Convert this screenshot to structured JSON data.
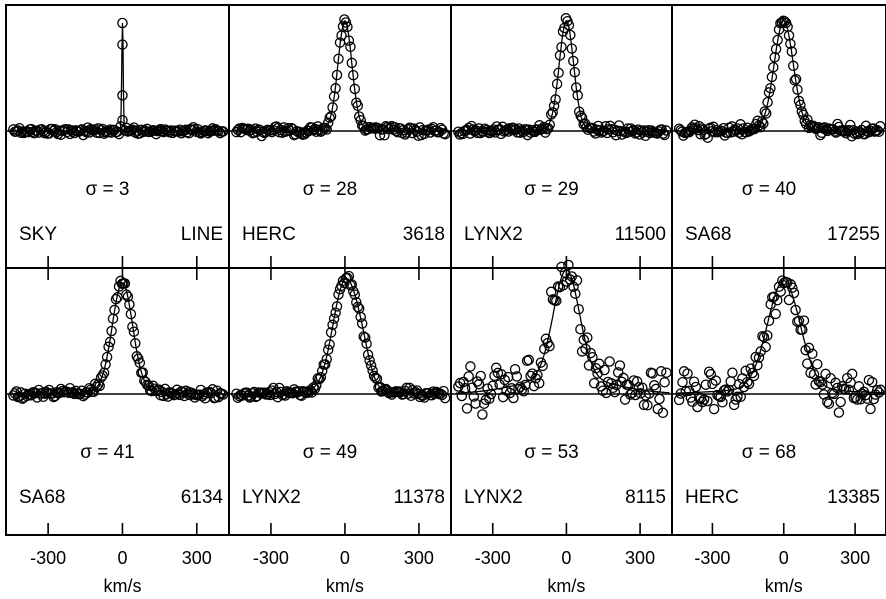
{
  "chart_data": {
    "type": "scatter",
    "layout": "grid of 8 panels (2 rows x 4 columns), shared x-axis per column",
    "grid": false,
    "xlabel": "km/s",
    "xticks": [
      -300,
      0,
      300
    ],
    "xlim": [
      -470,
      430
    ],
    "panels": [
      {
        "id": "sky-line",
        "sigma_label": "σ = 3",
        "field": "SKY",
        "number": "LINE",
        "width_kms": 3,
        "noise": 0.015,
        "wing": 0,
        "asym": 0
      },
      {
        "id": "herc-3618",
        "sigma_label": "σ = 28",
        "field": "HERC",
        "number": "3618",
        "width_kms": 28,
        "noise": 0.02,
        "wing": 0.02,
        "asym": 0
      },
      {
        "id": "lynx2-11500",
        "sigma_label": "σ = 29",
        "field": "LYNX2",
        "number": "11500",
        "width_kms": 29,
        "noise": 0.02,
        "wing": 0.02,
        "asym": 0
      },
      {
        "id": "sa68-17255",
        "sigma_label": "σ = 40",
        "field": "SA68",
        "number": "17255",
        "width_kms": 40,
        "noise": 0.025,
        "wing": 0.02,
        "asym": 0
      },
      {
        "id": "sa68-6134",
        "sigma_label": "σ = 41",
        "field": "SA68",
        "number": "6134",
        "width_kms": 41,
        "noise": 0.02,
        "wing": 0.03,
        "asym": 0
      },
      {
        "id": "lynx2-11378",
        "sigma_label": "σ = 49",
        "field": "LYNX2",
        "number": "11378",
        "width_kms": 49,
        "noise": 0.02,
        "wing": 0.03,
        "asym": 0.25
      },
      {
        "id": "lynx2-8115",
        "sigma_label": "σ = 53",
        "field": "LYNX2",
        "number": "8115",
        "width_kms": 53,
        "noise": 0.1,
        "wing": 0.15,
        "asym": 0
      },
      {
        "id": "herc-13385",
        "sigma_label": "σ = 68",
        "field": "HERC",
        "number": "13385",
        "width_kms": 68,
        "noise": 0.08,
        "wing": 0.05,
        "asym": 0
      }
    ]
  }
}
